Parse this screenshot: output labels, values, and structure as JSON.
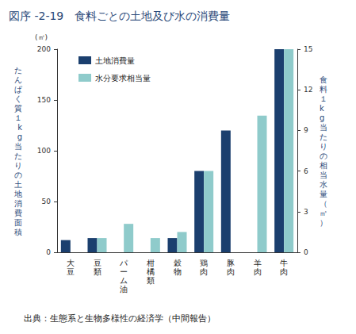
{
  "chart_data": {
    "type": "bar",
    "title": "図序 -2-19　食料ごとの土地及び水の消費量",
    "ylabel": "たんぱく質１kg当たりの土地消費面積",
    "y_unit": "(㎡)",
    "y2label": "食料１kg当たりの相当水量（㎥）",
    "source": "出典：生態系と生物多様性の経済学（中間報告）",
    "categories": [
      "大豆",
      "豆類",
      "パーム油",
      "柑橘類",
      "穀物",
      "鶏肉",
      "豚肉",
      "羊肉",
      "牛肉"
    ],
    "series": [
      {
        "name": "土地消費量",
        "color": "#1b3f6e",
        "values": [
          12,
          14,
          null,
          null,
          14,
          80,
          120,
          null,
          200
        ]
      },
      {
        "name": "水分要求相当量",
        "color": "#8fcbcb",
        "axis": "y2",
        "values": [
          null,
          1.05,
          2.1,
          1.05,
          1.5,
          6,
          null,
          10.1,
          15
        ]
      }
    ],
    "ylim": [
      0,
      200
    ],
    "yticks": [
      0,
      50,
      100,
      150,
      200
    ],
    "y2lim": [
      0,
      15
    ],
    "y2ticks": [
      0,
      3,
      6,
      9,
      12,
      15
    ],
    "grid": false,
    "legend": "upper left"
  }
}
